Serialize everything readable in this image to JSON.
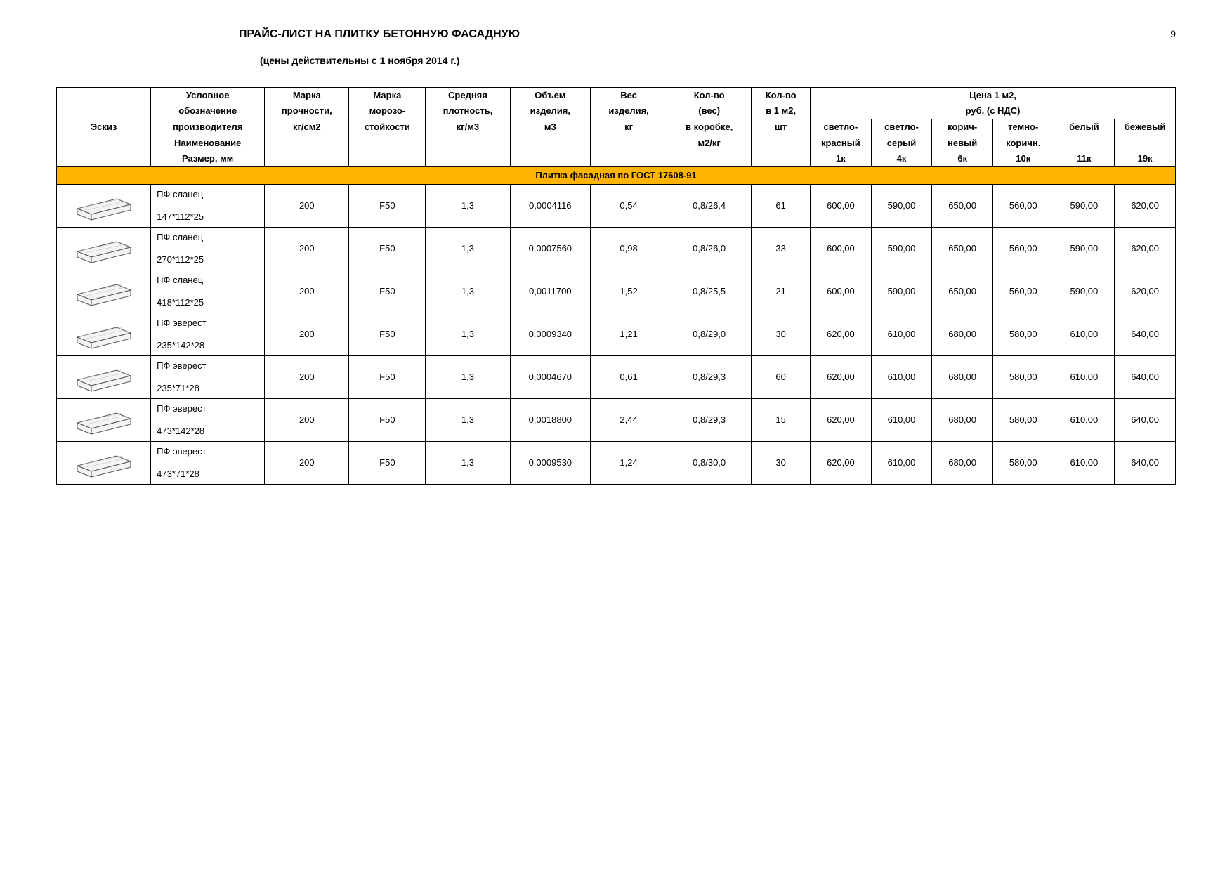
{
  "page_number": "9",
  "title": "ПРАЙС-ЛИСТ НА ПЛИТКУ БЕТОННУЮ ФАСАДНУЮ",
  "subtitle": "(цены действительны с 1 ноября 2014 г.)",
  "section_title": "Плитка фасадная по ГОСТ 17608-91",
  "colors": {
    "section_bg": "#ffb400",
    "border": "#000000",
    "text": "#000000",
    "bg": "#ffffff"
  },
  "header": {
    "sketch": "Эскиз",
    "name_l1": "Условное",
    "name_l2": "обозначение",
    "name_l3": "производителя",
    "name_l4": "Наименование",
    "name_l5": "Размер, мм",
    "strength_l1": "Марка",
    "strength_l2": "прочности,",
    "strength_l3": "кг/см2",
    "frost_l1": "Марка",
    "frost_l2": "морозо-",
    "frost_l3": "стойкости",
    "density_l1": "Средняя",
    "density_l2": "плотность,",
    "density_l3": "кг/м3",
    "volume_l1": "Объем",
    "volume_l2": "изделия,",
    "volume_l3": "м3",
    "weight_l1": "Вес",
    "weight_l2": "изделия,",
    "weight_l3": "кг",
    "box_l1": "Кол-во",
    "box_l2": "(вес)",
    "box_l3": "в коробке,",
    "box_l4": "м2/кг",
    "qty_l1": "Кол-во",
    "qty_l2": "в 1 м2,",
    "qty_l3": "шт",
    "price_group_l1": "Цена 1 м2,",
    "price_group_l2": "руб. (с НДС)",
    "p1_l1": "светло-",
    "p1_l2": "красный",
    "p1_l3": "1к",
    "p2_l1": "светло-",
    "p2_l2": "серый",
    "p2_l3": "4к",
    "p3_l1": "корич-",
    "p3_l2": "невый",
    "p3_l3": "6к",
    "p4_l1": "темно-",
    "p4_l2": "коричн.",
    "p4_l3": "10к",
    "p5_l1": "белый",
    "p5_l3": "11к",
    "p6_l1": "бежевый",
    "p6_l3": "19к"
  },
  "rows": [
    {
      "name": "ПФ сланец",
      "size": "147*112*25",
      "strength": "200",
      "frost": "F50",
      "density": "1,3",
      "volume": "0,0004116",
      "weight": "0,54",
      "box": "0,8/26,4",
      "qty": "61",
      "p": [
        "600,00",
        "590,00",
        "650,00",
        "560,00",
        "590,00",
        "620,00"
      ]
    },
    {
      "name": "ПФ сланец",
      "size": "270*112*25",
      "strength": "200",
      "frost": "F50",
      "density": "1,3",
      "volume": "0,0007560",
      "weight": "0,98",
      "box": "0,8/26,0",
      "qty": "33",
      "p": [
        "600,00",
        "590,00",
        "650,00",
        "560,00",
        "590,00",
        "620,00"
      ]
    },
    {
      "name": "ПФ сланец",
      "size": "418*112*25",
      "strength": "200",
      "frost": "F50",
      "density": "1,3",
      "volume": "0,0011700",
      "weight": "1,52",
      "box": "0,8/25,5",
      "qty": "21",
      "p": [
        "600,00",
        "590,00",
        "650,00",
        "560,00",
        "590,00",
        "620,00"
      ]
    },
    {
      "name": "ПФ эверест",
      "size": "235*142*28",
      "strength": "200",
      "frost": "F50",
      "density": "1,3",
      "volume": "0,0009340",
      "weight": "1,21",
      "box": "0,8/29,0",
      "qty": "30",
      "p": [
        "620,00",
        "610,00",
        "680,00",
        "580,00",
        "610,00",
        "640,00"
      ]
    },
    {
      "name": "ПФ эверест",
      "size": "235*71*28",
      "strength": "200",
      "frost": "F50",
      "density": "1,3",
      "volume": "0,0004670",
      "weight": "0,61",
      "box": "0,8/29,3",
      "qty": "60",
      "p": [
        "620,00",
        "610,00",
        "680,00",
        "580,00",
        "610,00",
        "640,00"
      ]
    },
    {
      "name": "ПФ эверест",
      "size": "473*142*28",
      "strength": "200",
      "frost": "F50",
      "density": "1,3",
      "volume": "0,0018800",
      "weight": "2,44",
      "box": "0,8/29,3",
      "qty": "15",
      "p": [
        "620,00",
        "610,00",
        "680,00",
        "580,00",
        "610,00",
        "640,00"
      ]
    },
    {
      "name": "ПФ эверест",
      "size": "473*71*28",
      "strength": "200",
      "frost": "F50",
      "density": "1,3",
      "volume": "0,0009530",
      "weight": "1,24",
      "box": "0,8/30,0",
      "qty": "30",
      "p": [
        "620,00",
        "610,00",
        "680,00",
        "580,00",
        "610,00",
        "640,00"
      ]
    }
  ]
}
